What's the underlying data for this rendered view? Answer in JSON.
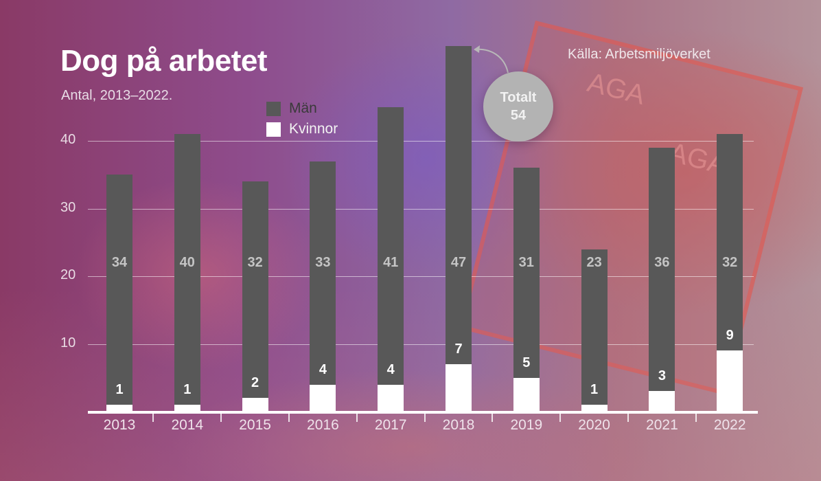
{
  "chart": {
    "title": "Dog på arbetet",
    "subtitle": "Antal, 2013–2022.",
    "source": "Källa: Arbetsmiljöverket",
    "legend": [
      {
        "label": "Män",
        "color": "#585858"
      },
      {
        "label": "Kvinnor",
        "color": "#ffffff"
      }
    ],
    "annotation": {
      "line1": "Totalt",
      "line2": "54"
    },
    "yticks": [
      "10",
      "20",
      "30",
      "40"
    ]
  },
  "chart_data": {
    "type": "bar",
    "stacked": true,
    "title": "Dog på arbetet",
    "subtitle": "Antal, 2013–2022.",
    "source": "Källa: Arbetsmiljöverket",
    "categories": [
      "2013",
      "2014",
      "2015",
      "2016",
      "2017",
      "2018",
      "2019",
      "2020",
      "2021",
      "2022"
    ],
    "series": [
      {
        "name": "Kvinnor",
        "color": "#ffffff",
        "values": [
          1,
          1,
          2,
          4,
          4,
          7,
          5,
          1,
          3,
          9
        ]
      },
      {
        "name": "Män",
        "color": "#585858",
        "values": [
          34,
          40,
          32,
          33,
          41,
          47,
          31,
          23,
          36,
          32
        ]
      }
    ],
    "totals": [
      35,
      41,
      34,
      37,
      45,
      54,
      36,
      24,
      39,
      41
    ],
    "annotations": [
      {
        "category": "2018",
        "text": "Totalt 54"
      }
    ],
    "xlabel": "",
    "ylabel": "",
    "ylim": [
      0,
      50
    ],
    "yticks": [
      10,
      20,
      30,
      40
    ],
    "grid": true,
    "legend_position": "top-center"
  }
}
